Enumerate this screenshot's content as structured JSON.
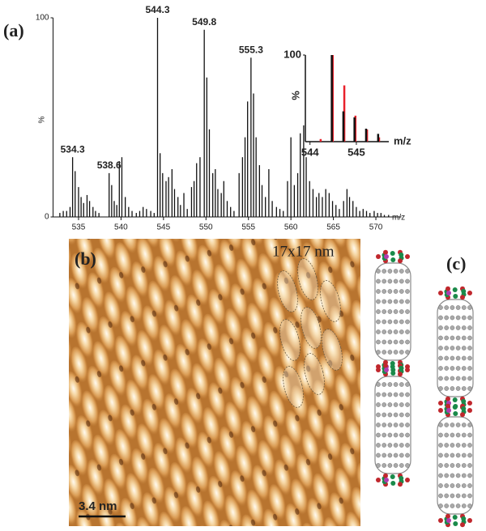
{
  "panel_labels": [
    "(a)",
    "(b)",
    "(c)"
  ],
  "chart_data": [
    {
      "type": "bar",
      "color": "#111111",
      "x": [
        532.8,
        533.2,
        533.6,
        534.0,
        534.3,
        534.6,
        535.0,
        535.3,
        535.6,
        536.0,
        536.3,
        536.7,
        537.0,
        537.4,
        538.6,
        538.9,
        539.2,
        539.5,
        539.8,
        540.1,
        540.5,
        540.9,
        541.3,
        541.8,
        542.2,
        542.6,
        543.0,
        543.5,
        543.9,
        544.3,
        544.6,
        544.9,
        545.3,
        545.6,
        546.0,
        546.3,
        546.7,
        547.0,
        547.4,
        547.8,
        548.3,
        548.6,
        548.9,
        549.3,
        549.8,
        550.1,
        550.4,
        550.8,
        551.1,
        551.4,
        551.8,
        552.1,
        552.5,
        552.9,
        553.3,
        553.9,
        554.3,
        554.6,
        554.9,
        555.3,
        555.6,
        555.9,
        556.3,
        556.6,
        557.0,
        557.4,
        557.8,
        558.3,
        558.7,
        559.1,
        559.6,
        560.0,
        560.4,
        560.8,
        561.1,
        561.5,
        561.8,
        562.2,
        562.6,
        563.0,
        563.3,
        563.7,
        564.1,
        564.5,
        564.9,
        565.3,
        565.7,
        566.2,
        566.6,
        566.9,
        567.3,
        567.7,
        568.1,
        568.5,
        568.9,
        569.3,
        569.8,
        570.2,
        570.6,
        571.0,
        571.5
      ],
      "values": [
        2,
        3,
        3,
        5,
        30,
        23,
        15,
        10,
        7,
        11,
        8,
        5,
        3,
        2,
        22,
        16,
        8,
        6,
        28,
        30,
        10,
        5,
        3,
        2,
        3,
        5,
        4,
        3,
        2,
        100,
        32,
        22,
        18,
        20,
        24,
        14,
        10,
        6,
        12,
        4,
        15,
        18,
        27,
        30,
        94,
        70,
        44,
        22,
        24,
        14,
        12,
        18,
        8,
        5,
        3,
        22,
        30,
        40,
        58,
        80,
        62,
        40,
        26,
        16,
        10,
        24,
        8,
        5,
        4,
        3,
        18,
        40,
        16,
        22,
        42,
        46,
        30,
        18,
        14,
        10,
        12,
        10,
        14,
        12,
        8,
        6,
        4,
        8,
        14,
        10,
        8,
        5,
        3,
        4,
        3,
        2,
        3,
        2,
        2,
        1,
        1
      ],
      "xlim": [
        532,
        573
      ],
      "ylim": [
        0,
        100
      ],
      "xticks": [
        535,
        540,
        545,
        550,
        555,
        560,
        565,
        570
      ],
      "yticks": [
        0,
        100
      ],
      "xlabel": "m/z",
      "ylabel": "%",
      "annotations": [
        534.3,
        538.6,
        544.3,
        549.8,
        555.3
      ]
    },
    {
      "type": "bar",
      "series": [
        {
          "color": "#e8202a",
          "x": [
            544.23,
            544.49,
            544.74,
            544.98,
            545.23,
            545.49
          ],
          "values": [
            3,
            100,
            65,
            30,
            14,
            5
          ]
        },
        {
          "color": "#111111",
          "x": [
            544.47,
            544.72,
            544.96,
            545.21,
            545.47
          ],
          "values": [
            100,
            35,
            28,
            15,
            9
          ]
        }
      ],
      "xlim": [
        543.9,
        545.7
      ],
      "ylim": [
        0,
        100
      ],
      "xticks": [
        544,
        545
      ],
      "yticks": [
        100
      ],
      "xlabel": "m/z",
      "ylabel": "%"
    }
  ],
  "stm": {
    "size_label": "17x17 nm",
    "scale_label": "3.4 nm"
  }
}
